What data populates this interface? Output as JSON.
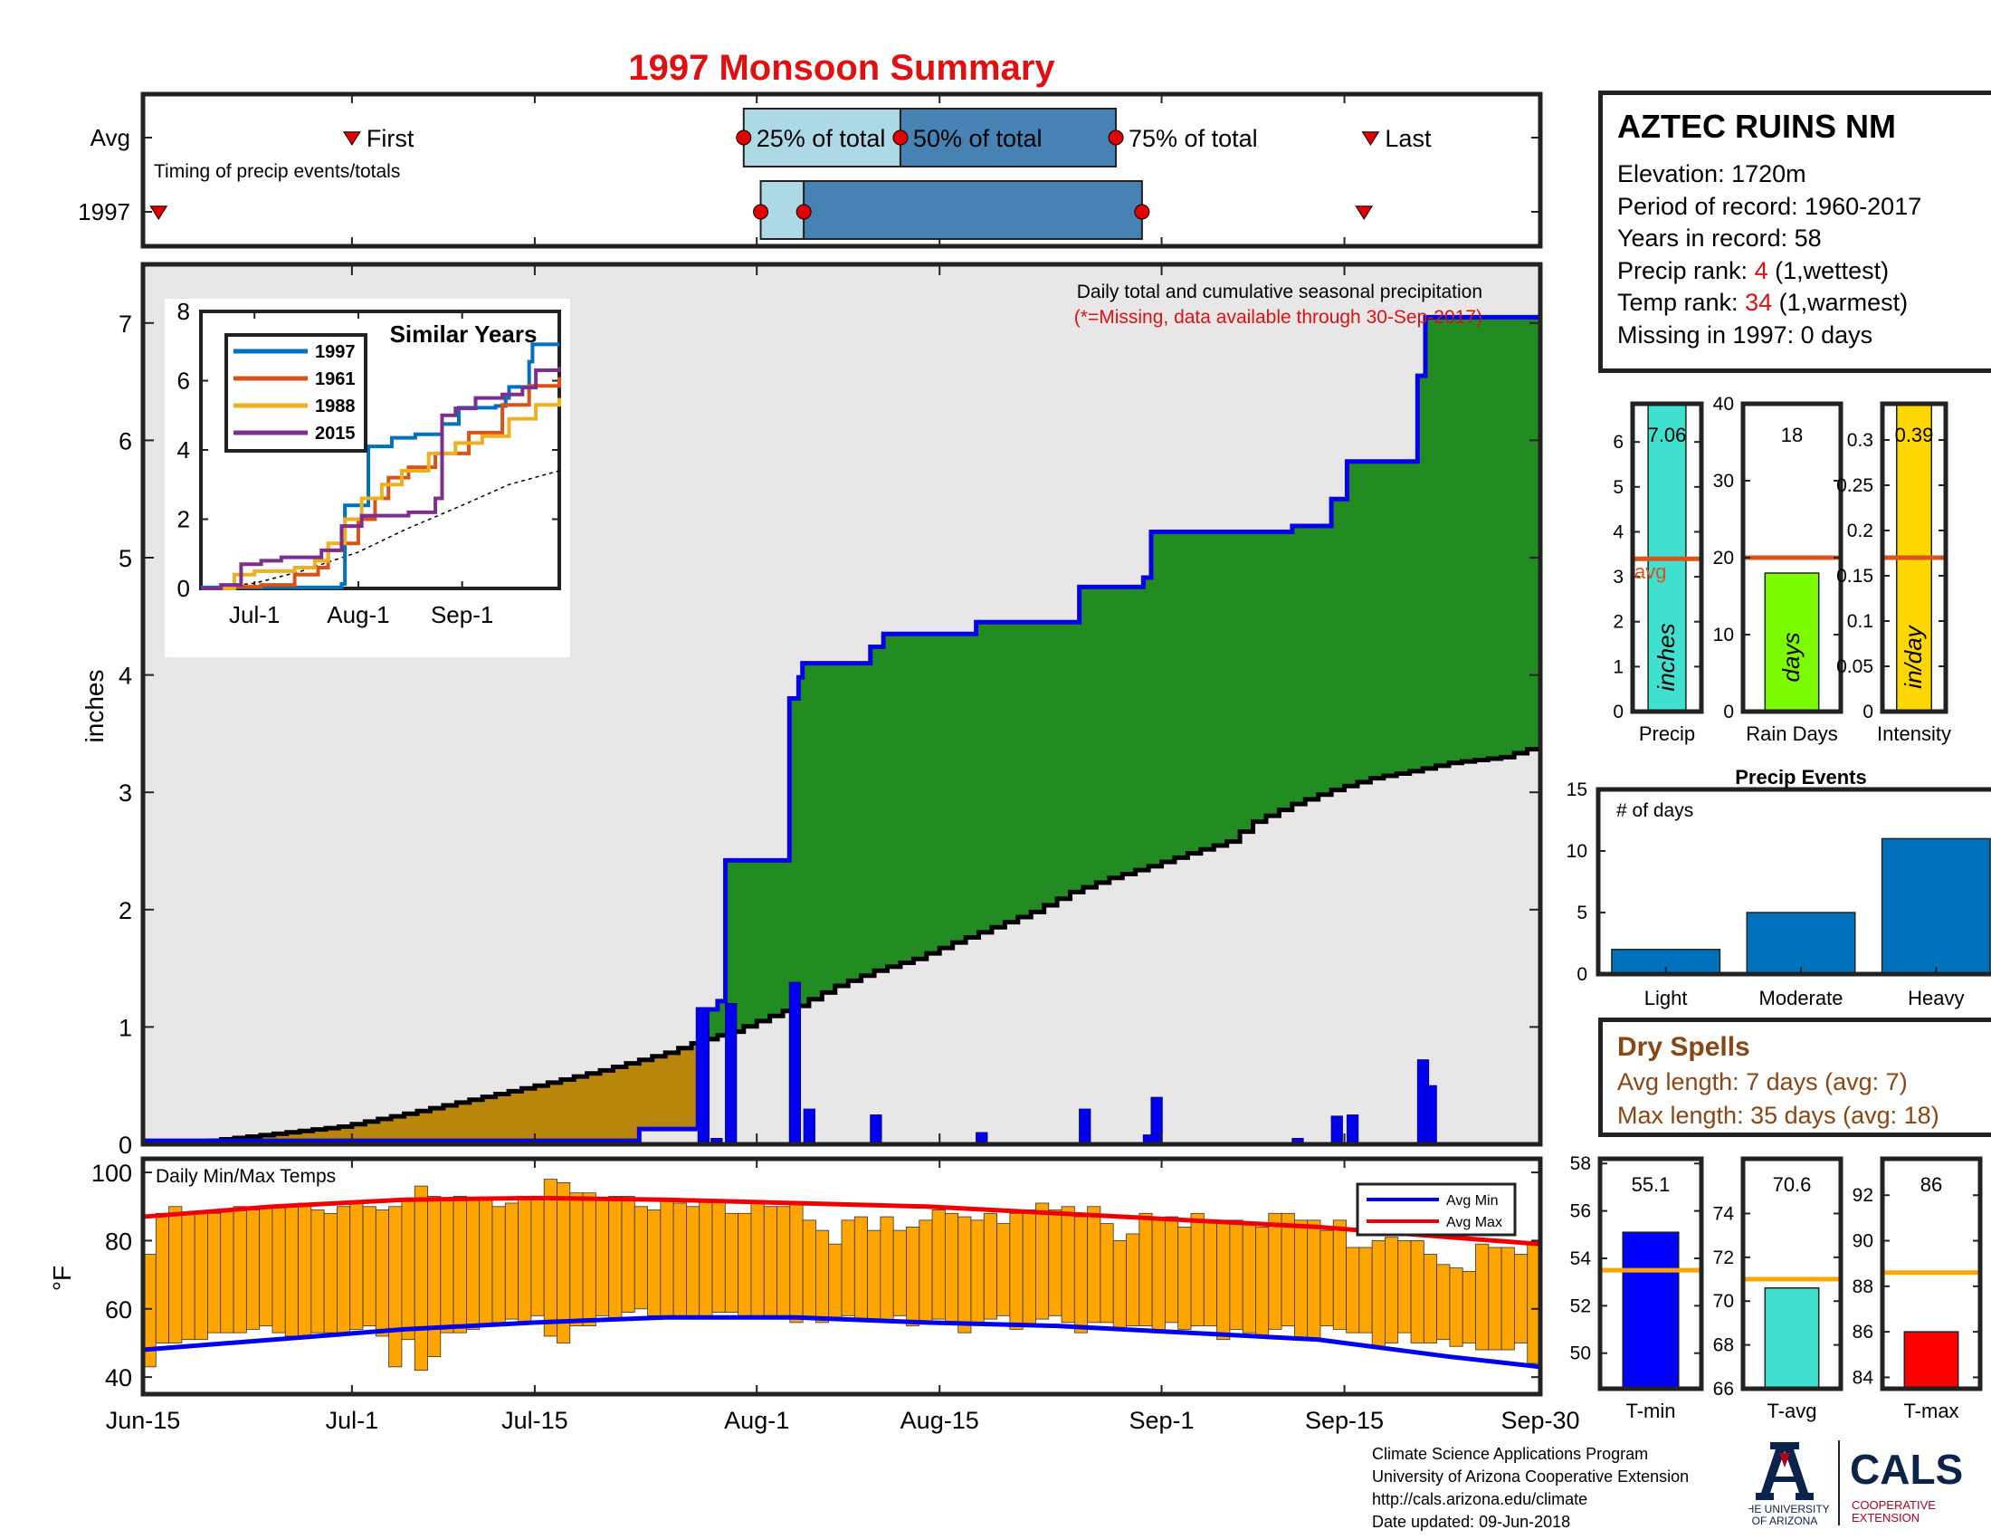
{
  "title": "1997 Monsoon Summary",
  "station": {
    "name": "AZTEC RUINS NM",
    "lines": [
      {
        "label": "Elevation: ",
        "value": "1720m",
        "suffix": ""
      },
      {
        "label": "Period of record: ",
        "value": "1960-2017",
        "suffix": ""
      },
      {
        "label": "Years in record: ",
        "value": "58",
        "suffix": ""
      },
      {
        "label": "Precip rank: ",
        "value": "4",
        "suffix": " (1,wettest)",
        "highlight": true
      },
      {
        "label": "Temp rank: ",
        "value": "34",
        "suffix": " (1,warmest)",
        "highlight": true
      },
      {
        "label": "Missing in 1997: ",
        "value": "0 days",
        "suffix": ""
      }
    ]
  },
  "dry_spells": {
    "title": "Dry Spells",
    "avg_line": "Avg length: 7 days (avg: 7)",
    "max_line": "Max length: 35 days (avg: 18)"
  },
  "credits": [
    "Climate Science Applications Program",
    "University of Arizona Cooperative Extension",
    "http://cals.arizona.edu/climate",
    " Date updated: 09-Jun-2018"
  ],
  "logos": {
    "ua_line1": "THE UNIVERSITY",
    "ua_line2": "OF ARIZONA",
    "cals": "CALS",
    "cals_sub1": "COOPERATIVE",
    "cals_sub2": "EXTENSION"
  },
  "colors": {
    "title": "#e01010",
    "green": "#228b22",
    "brown": "#b8860b",
    "blue": "#0000ee",
    "gray_fill": "#e8e6e6",
    "orange": "#ffa500",
    "avg_line": "#d9541a"
  },
  "chart_data": [
    {
      "id": "timing",
      "type": "timeline",
      "label": "Timing of precip events/totals",
      "rows": [
        "Avg",
        "1997"
      ],
      "markers": {
        "first": "First",
        "p25": "25% of total",
        "p50": "50% of total",
        "p75": "75% of total",
        "last": "Last"
      },
      "avg_days": {
        "first": 16,
        "p25": 46,
        "p50": 58,
        "p75": 74.5,
        "last": 94
      },
      "y1997_days": {
        "first": 0.5,
        "p25": 47.3,
        "p50": 50.6,
        "p75": 76.5,
        "last": 93.5
      },
      "xlim_days": [
        0,
        107
      ]
    },
    {
      "id": "cumulative",
      "type": "area",
      "note1": "Daily total and cumulative seasonal precipitation",
      "note2": "(*=Missing, data available through 30-Sep-2017)",
      "ylabel": "inches",
      "ylim": [
        0,
        7.5
      ],
      "yticks": [
        0,
        1,
        2,
        3,
        4,
        5,
        6,
        7
      ],
      "xticks": [
        "Jun-15",
        "Jul-1",
        "Jul-15",
        "Aug-1",
        "Aug-15",
        "Sep-1",
        "Sep-15",
        "Sep-30"
      ],
      "xtick_days": [
        0,
        16,
        30,
        47,
        61,
        78,
        92,
        107
      ],
      "cum_1997": [
        [
          0,
          0.03
        ],
        [
          38,
          0.13
        ],
        [
          42,
          0.13
        ],
        [
          42.5,
          1.15
        ],
        [
          44,
          1.22
        ],
        [
          44.6,
          1.22
        ],
        [
          44.6,
          2.42
        ],
        [
          49.5,
          2.42
        ],
        [
          49.5,
          3.8
        ],
        [
          50.2,
          3.98
        ],
        [
          50.5,
          4.1
        ],
        [
          55.7,
          4.1
        ],
        [
          55.7,
          4.24
        ],
        [
          56.7,
          4.35
        ],
        [
          63.8,
          4.35
        ],
        [
          63.8,
          4.45
        ],
        [
          71.7,
          4.45
        ],
        [
          71.7,
          4.75
        ],
        [
          76.6,
          4.75
        ],
        [
          76.6,
          4.83
        ],
        [
          77.2,
          4.83
        ],
        [
          77.2,
          5.22
        ],
        [
          88,
          5.22
        ],
        [
          88,
          5.27
        ],
        [
          91,
          5.27
        ],
        [
          91,
          5.5
        ],
        [
          92.2,
          5.57
        ],
        [
          92.2,
          5.82
        ],
        [
          97.6,
          5.82
        ],
        [
          97.6,
          6.55
        ],
        [
          98.2,
          6.55
        ],
        [
          98.2,
          7.05
        ],
        [
          107,
          7.05
        ]
      ],
      "cum_avg": [
        [
          0,
          0
        ],
        [
          5,
          0.03
        ],
        [
          10,
          0.09
        ],
        [
          15,
          0.15
        ],
        [
          20,
          0.26
        ],
        [
          25,
          0.38
        ],
        [
          30,
          0.5
        ],
        [
          35,
          0.63
        ],
        [
          40,
          0.78
        ],
        [
          42.5,
          0.88
        ],
        [
          45,
          0.96
        ],
        [
          47,
          1.05
        ],
        [
          50,
          1.18
        ],
        [
          53,
          1.35
        ],
        [
          56,
          1.48
        ],
        [
          59,
          1.58
        ],
        [
          62,
          1.72
        ],
        [
          65,
          1.85
        ],
        [
          68,
          1.98
        ],
        [
          71,
          2.15
        ],
        [
          74,
          2.27
        ],
        [
          77,
          2.37
        ],
        [
          80,
          2.48
        ],
        [
          83,
          2.58
        ],
        [
          85,
          2.75
        ],
        [
          88,
          2.9
        ],
        [
          91,
          3.02
        ],
        [
          94,
          3.12
        ],
        [
          97,
          3.18
        ],
        [
          100,
          3.25
        ],
        [
          104,
          3.3
        ],
        [
          107,
          3.4
        ]
      ],
      "daily_1997": [
        [
          42.5,
          1.15
        ],
        [
          43.5,
          0.05
        ],
        [
          44.6,
          1.2
        ],
        [
          49.5,
          1.38
        ],
        [
          50.6,
          0.3
        ],
        [
          55.7,
          0.25
        ],
        [
          63.8,
          0.1
        ],
        [
          71.7,
          0.3
        ],
        [
          76.6,
          0.08
        ],
        [
          77.2,
          0.4
        ],
        [
          88,
          0.05
        ],
        [
          91,
          0.24
        ],
        [
          92.2,
          0.25
        ],
        [
          97.6,
          0.72
        ],
        [
          98.2,
          0.5
        ]
      ]
    },
    {
      "id": "similar_years",
      "type": "line",
      "title": "Similar Years",
      "ylim": [
        0,
        8
      ],
      "yticks": [
        0,
        2,
        4,
        6,
        8
      ],
      "xticks": [
        "Jul-1",
        "Aug-1",
        "Sep-1"
      ],
      "xtick_days": [
        16,
        47,
        78
      ],
      "series": [
        {
          "name": "1997",
          "color": "#0072bd",
          "points": [
            [
              0,
              0.03
            ],
            [
              42,
              0.13
            ],
            [
              43,
              2.4
            ],
            [
              49,
              2.4
            ],
            [
              50,
              4.1
            ],
            [
              56,
              4.1
            ],
            [
              57,
              4.35
            ],
            [
              64,
              4.45
            ],
            [
              72,
              4.75
            ],
            [
              77,
              5.22
            ],
            [
              88,
              5.27
            ],
            [
              91,
              5.5
            ],
            [
              92,
              5.82
            ],
            [
              97,
              5.82
            ],
            [
              98,
              6.55
            ],
            [
              99,
              7.05
            ],
            [
              107,
              7.05
            ]
          ]
        },
        {
          "name": "1961",
          "color": "#d95319",
          "points": [
            [
              0,
              0
            ],
            [
              8,
              0.05
            ],
            [
              18,
              0.1
            ],
            [
              28,
              0.4
            ],
            [
              35,
              0.6
            ],
            [
              38,
              1.1
            ],
            [
              42,
              1.3
            ],
            [
              47,
              2.0
            ],
            [
              52,
              2.6
            ],
            [
              56,
              3.2
            ],
            [
              62,
              3.5
            ],
            [
              70,
              3.9
            ],
            [
              80,
              4.5
            ],
            [
              90,
              5.3
            ],
            [
              98,
              5.85
            ],
            [
              107,
              6.1
            ]
          ]
        },
        {
          "name": "1988",
          "color": "#edb120",
          "points": [
            [
              0,
              0
            ],
            [
              10,
              0.4
            ],
            [
              16,
              0.5
            ],
            [
              22,
              0.5
            ],
            [
              28,
              0.6
            ],
            [
              34,
              0.8
            ],
            [
              38,
              1.3
            ],
            [
              43,
              2.0
            ],
            [
              48,
              2.6
            ],
            [
              54,
              3.0
            ],
            [
              60,
              3.4
            ],
            [
              68,
              3.9
            ],
            [
              76,
              4.2
            ],
            [
              84,
              4.4
            ],
            [
              92,
              4.9
            ],
            [
              100,
              5.3
            ],
            [
              107,
              5.5
            ]
          ]
        },
        {
          "name": "2015",
          "color": "#7e2f8e",
          "points": [
            [
              0,
              0
            ],
            [
              6,
              0.1
            ],
            [
              12,
              0.7
            ],
            [
              18,
              0.8
            ],
            [
              24,
              0.9
            ],
            [
              30,
              0.9
            ],
            [
              36,
              1.1
            ],
            [
              42,
              1.8
            ],
            [
              48,
              2.1
            ],
            [
              55,
              2.1
            ],
            [
              62,
              2.2
            ],
            [
              70,
              2.6
            ],
            [
              72,
              5.0
            ],
            [
              76,
              5.2
            ],
            [
              82,
              5.5
            ],
            [
              90,
              5.6
            ],
            [
              96,
              5.8
            ],
            [
              100,
              6.3
            ],
            [
              104,
              6.3
            ],
            [
              107,
              6.4
            ]
          ]
        }
      ],
      "avg_points": [
        [
          0,
          0
        ],
        [
          16,
          0.15
        ],
        [
          30,
          0.5
        ],
        [
          47,
          1.05
        ],
        [
          61,
          1.7
        ],
        [
          78,
          2.4
        ],
        [
          92,
          3.0
        ],
        [
          107,
          3.4
        ]
      ]
    },
    {
      "id": "precip_total",
      "type": "bar",
      "label": "Precip",
      "inner_label": "inches",
      "value": 7.06,
      "value_label": "7.06",
      "avg": 3.4,
      "avg_label": "avg",
      "ylim": [
        0,
        6.85
      ],
      "yticks": [
        0,
        1,
        2,
        3,
        4,
        5,
        6
      ],
      "color": "#40e0d0"
    },
    {
      "id": "rain_days",
      "type": "bar",
      "label": "Rain Days",
      "inner_label": "days",
      "value": 18,
      "value_label": "18",
      "avg": 20,
      "ylim": [
        0,
        40
      ],
      "yticks": [
        0,
        10,
        20,
        30,
        40
      ],
      "color": "#7cfc00"
    },
    {
      "id": "intensity",
      "type": "bar",
      "label": "Intensity",
      "inner_label": "in/day",
      "value": 0.39,
      "value_label": "0.39",
      "avg": 0.17,
      "ylim": [
        0,
        0.34
      ],
      "yticks": [
        0,
        0.05,
        0.1,
        0.15,
        0.2,
        0.25,
        0.3
      ],
      "ytick_labels": [
        "0",
        "0.05",
        "0.1",
        "0.15",
        "0.2",
        "0.25",
        "0.3"
      ],
      "color": "#ffd700"
    },
    {
      "id": "precip_events",
      "type": "bar",
      "title": "Precip Events",
      "ylabel": "# of days",
      "categories": [
        "Light",
        "Moderate",
        "Heavy"
      ],
      "values": [
        2,
        5,
        11
      ],
      "ylim": [
        0,
        15
      ],
      "yticks": [
        0,
        5,
        10,
        15
      ],
      "color": "#0072bd"
    },
    {
      "id": "daily_temps",
      "type": "bar",
      "label": "Daily Min/Max Temps",
      "ylabel": "°F",
      "ylim": [
        35,
        104
      ],
      "yticks": [
        40,
        60,
        80,
        100
      ],
      "legend": [
        "Avg Min",
        "Avg Max"
      ],
      "days": 108,
      "tmax": [
        76,
        88,
        90,
        88,
        88,
        88,
        89,
        90,
        89,
        90,
        90,
        90,
        91,
        89,
        88,
        90,
        91,
        90,
        89,
        90,
        92,
        96,
        93,
        92,
        93,
        92,
        92,
        90,
        91,
        93,
        93,
        98,
        97,
        94,
        94,
        92,
        93,
        93,
        90,
        89,
        92,
        91,
        90,
        92,
        92,
        88,
        88,
        91,
        90,
        90,
        91,
        86,
        83,
        79,
        86,
        87,
        83,
        87,
        83,
        84,
        86,
        89,
        88,
        87,
        86,
        88,
        85,
        88,
        89,
        91,
        89,
        90,
        87,
        90,
        85,
        80,
        82,
        88,
        86,
        87,
        84,
        88,
        86,
        86,
        86,
        85,
        84,
        88,
        88,
        86,
        86,
        83,
        86,
        78,
        78,
        80,
        81,
        80,
        80,
        76,
        73,
        72,
        71,
        79,
        78,
        78,
        76,
        79
      ],
      "tmin": [
        43,
        50,
        50,
        51,
        51,
        53,
        53,
        53,
        54,
        55,
        53,
        52,
        52,
        53,
        53,
        53,
        54,
        55,
        52,
        43,
        51,
        42,
        46,
        53,
        53,
        54,
        55,
        56,
        57,
        56,
        58,
        52,
        50,
        55,
        55,
        58,
        57,
        59,
        60,
        58,
        57,
        58,
        57,
        57,
        59,
        59,
        57,
        58,
        58,
        58,
        56,
        57,
        56,
        57,
        58,
        57,
        57,
        56,
        58,
        55,
        56,
        57,
        56,
        53,
        56,
        57,
        58,
        54,
        55,
        57,
        58,
        56,
        53,
        56,
        56,
        54,
        55,
        55,
        53,
        56,
        54,
        55,
        55,
        51,
        54,
        53,
        52,
        54,
        55,
        51,
        51,
        55,
        54,
        53,
        53,
        49,
        50,
        53,
        50,
        50,
        51,
        49,
        50,
        48,
        48,
        48,
        50,
        44
      ],
      "avg_min": [
        [
          0,
          48
        ],
        [
          10,
          51
        ],
        [
          20,
          54
        ],
        [
          30,
          56
        ],
        [
          40,
          57.5
        ],
        [
          50,
          57.5
        ],
        [
          60,
          56
        ],
        [
          70,
          55
        ],
        [
          80,
          53
        ],
        [
          90,
          51
        ],
        [
          100,
          46
        ],
        [
          107,
          43
        ]
      ],
      "avg_max": [
        [
          0,
          87
        ],
        [
          10,
          90
        ],
        [
          20,
          92
        ],
        [
          30,
          92.5
        ],
        [
          40,
          92
        ],
        [
          50,
          91
        ],
        [
          60,
          90
        ],
        [
          70,
          88
        ],
        [
          80,
          86
        ],
        [
          90,
          84
        ],
        [
          100,
          81
        ],
        [
          107,
          79
        ]
      ]
    },
    {
      "id": "t_min",
      "type": "bar",
      "label": "T-min",
      "value": 55.1,
      "value_label": "55.1",
      "avg": 53.5,
      "ylim": [
        48.5,
        58.2
      ],
      "yticks": [
        50,
        52,
        54,
        56,
        58
      ],
      "color": "#0000ff"
    },
    {
      "id": "t_avg",
      "type": "bar",
      "label": "T-avg",
      "value": 70.6,
      "value_label": "70.6",
      "avg": 71,
      "ylim": [
        66,
        76.5
      ],
      "yticks": [
        66,
        68,
        70,
        72,
        74
      ],
      "color": "#40e0d0"
    },
    {
      "id": "t_max",
      "type": "bar",
      "label": "T-max",
      "value": 86,
      "value_label": "86",
      "avg": 88.6,
      "ylim": [
        83.5,
        93.6
      ],
      "yticks": [
        84,
        86,
        88,
        90,
        92
      ],
      "color": "#ff0000"
    }
  ]
}
